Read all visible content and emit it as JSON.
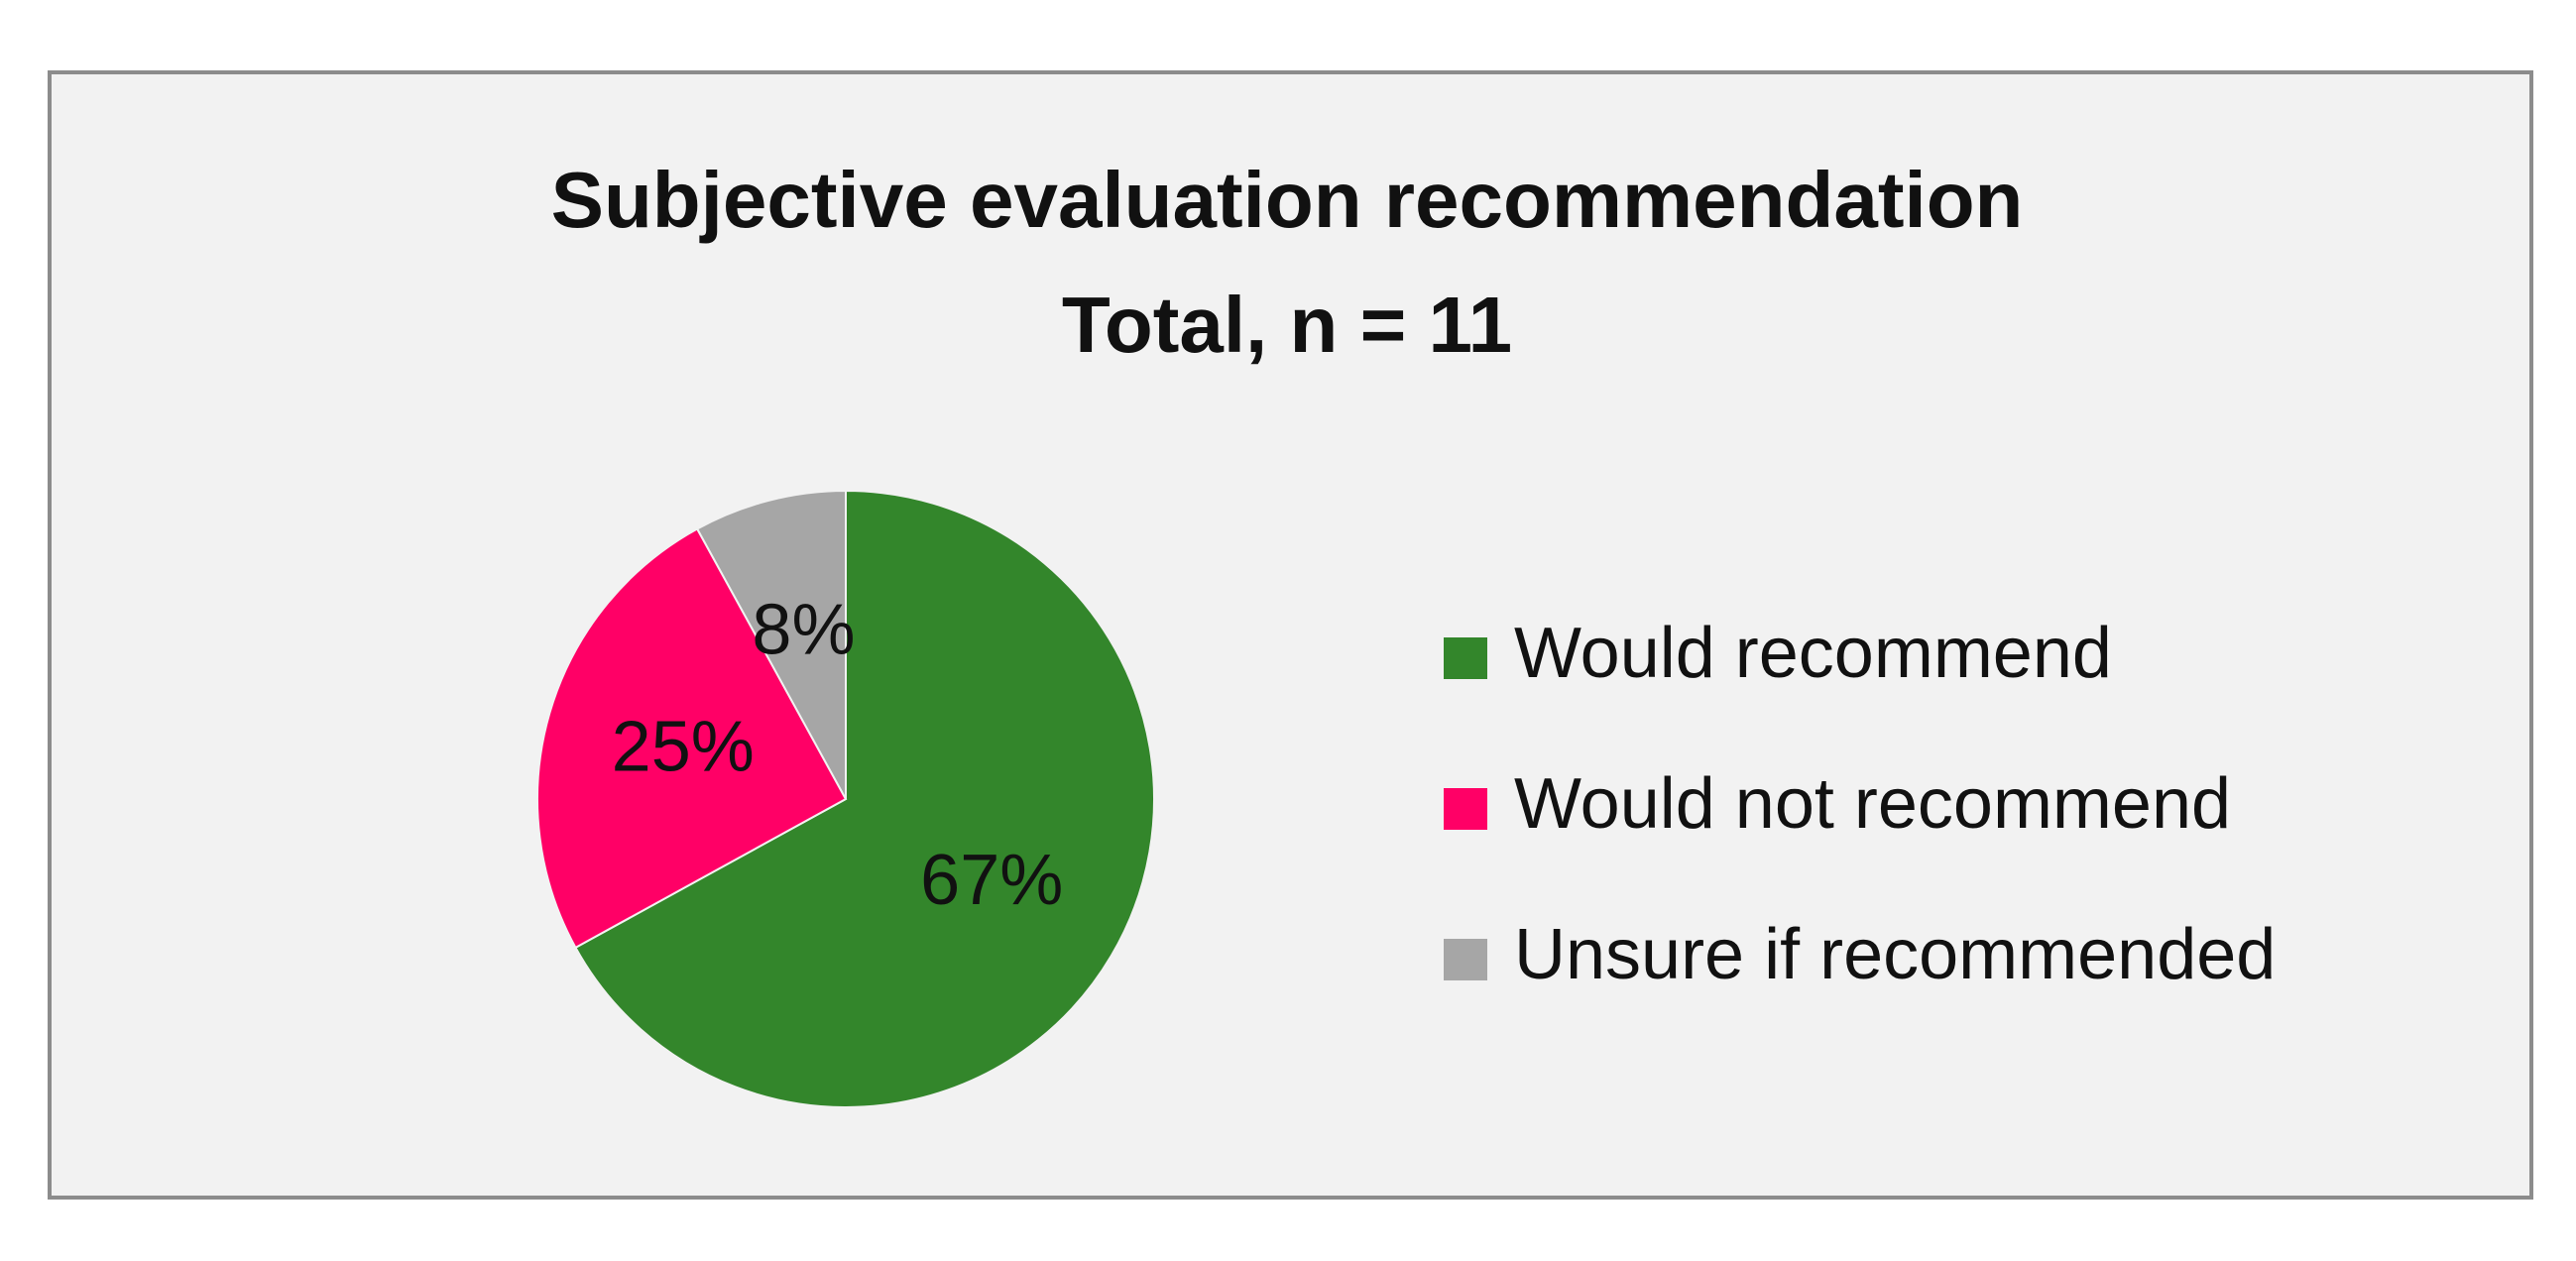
{
  "chart_data": {
    "type": "pie",
    "title": "Subjective evaluation recommendation",
    "subtitle": "Total, n = 11",
    "categories": [
      "Would recommend",
      "Would not recommend",
      "Unsure if recommended"
    ],
    "values": [
      67,
      25,
      8
    ],
    "value_labels": [
      "67%",
      "25%",
      "8%"
    ],
    "colors": [
      "#33862b",
      "#ff0066",
      "#a6a6a6"
    ],
    "legend": "right"
  }
}
